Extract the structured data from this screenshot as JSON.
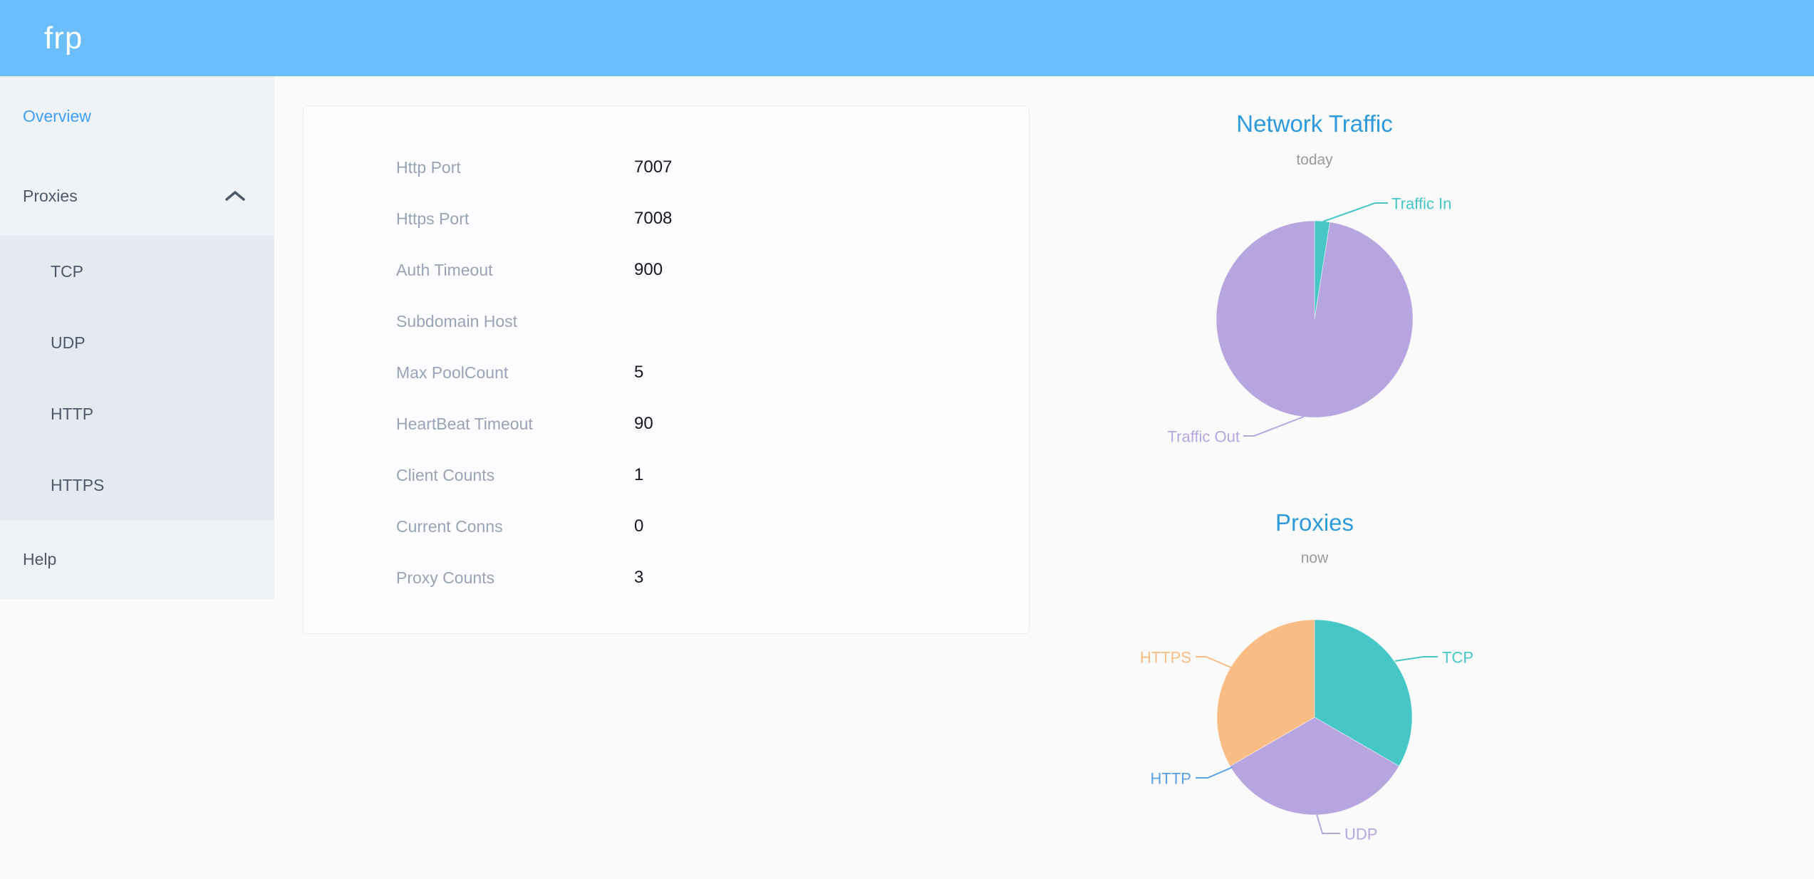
{
  "header": {
    "logo": "frp"
  },
  "sidebar": {
    "items": [
      {
        "label": "Overview",
        "active": true
      },
      {
        "label": "Proxies",
        "expanded": true
      },
      {
        "label": "TCP"
      },
      {
        "label": "UDP"
      },
      {
        "label": "HTTP"
      },
      {
        "label": "HTTPS"
      },
      {
        "label": "Help"
      }
    ]
  },
  "overview_card": {
    "rows": [
      {
        "label": "Http Port",
        "value": "7007"
      },
      {
        "label": "Https Port",
        "value": "7008"
      },
      {
        "label": "Auth Timeout",
        "value": "900"
      },
      {
        "label": "Subdomain Host",
        "value": ""
      },
      {
        "label": "Max PoolCount",
        "value": "5"
      },
      {
        "label": "HeartBeat Timeout",
        "value": "90"
      },
      {
        "label": "Client Counts",
        "value": "1"
      },
      {
        "label": "Current Conns",
        "value": "0"
      },
      {
        "label": "Proxy Counts",
        "value": "3"
      }
    ]
  },
  "colors": {
    "header_blue": "#6CBEFA",
    "title_blue": "#2D9BDB",
    "active_link_blue": "#3FA0F8",
    "teal": "#46C6C6",
    "purple": "#B7A5E0",
    "orange": "#F9BC84",
    "http_blue": "#59A0E5"
  },
  "chart_data": [
    {
      "type": "pie",
      "title": "Network Traffic",
      "subtitle": "today",
      "legend_position": "labels-with-leader-lines",
      "values_note": "no numeric labels shown; values estimated from slice angles as percent of pie",
      "series": [
        {
          "name": "Traffic In",
          "value": 2.5,
          "color": "#46C6C6"
        },
        {
          "name": "Traffic Out",
          "value": 97.5,
          "color": "#B7A5E0"
        }
      ]
    },
    {
      "type": "pie",
      "title": "Proxies",
      "subtitle": "now",
      "legend_position": "labels-with-leader-lines",
      "values_note": "three equal visible slices; HTTP slice has zero width; total matches Proxy Counts = 3",
      "series": [
        {
          "name": "TCP",
          "value": 1,
          "color": "#46C6C6"
        },
        {
          "name": "UDP",
          "value": 1,
          "color": "#B7A5E0"
        },
        {
          "name": "HTTP",
          "value": 0,
          "color": "#59A0E5"
        },
        {
          "name": "HTTPS",
          "value": 1,
          "color": "#F9BC84"
        }
      ]
    }
  ]
}
